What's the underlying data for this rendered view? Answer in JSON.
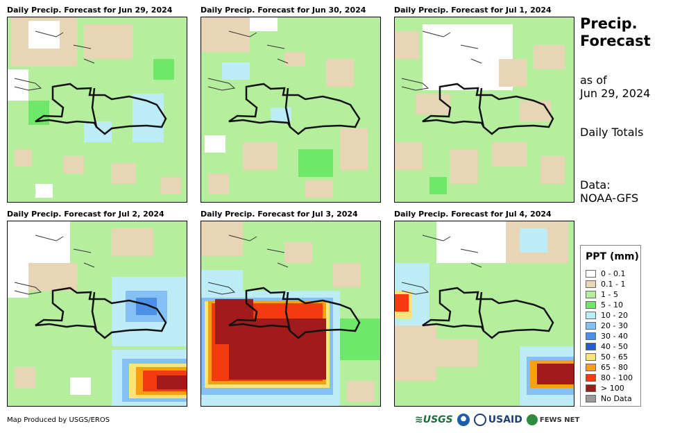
{
  "side": {
    "title_line1": "Precip.",
    "title_line2": "Forecast",
    "asof_line1": "as of",
    "asof_line2": "Jun 29, 2024",
    "totals": "Daily Totals",
    "data_line1": "Data:",
    "data_line2": "NOAA-GFS"
  },
  "panels": [
    {
      "title": "Daily Precip. Forecast for Jun 29, 2024"
    },
    {
      "title": "Daily Precip. Forecast for Jun 30, 2024"
    },
    {
      "title": "Daily Precip. Forecast for Jul 1, 2024"
    },
    {
      "title": "Daily Precip. Forecast for Jul 2, 2024"
    },
    {
      "title": "Daily Precip. Forecast for Jul 3, 2024"
    },
    {
      "title": "Daily Precip. Forecast for Jul 4, 2024"
    }
  ],
  "legend": {
    "title": "PPT (mm)",
    "items": [
      {
        "label": "0 - 0.1",
        "color": "#ffffff"
      },
      {
        "label": "0.1 - 1",
        "color": "#e8d5b5"
      },
      {
        "label": "1 - 5",
        "color": "#b5ef9e"
      },
      {
        "label": "5 - 10",
        "color": "#6fe86a"
      },
      {
        "label": "10 - 20",
        "color": "#bcecf5"
      },
      {
        "label": "20 - 30",
        "color": "#84c0f3"
      },
      {
        "label": "30 - 40",
        "color": "#4a8fe8"
      },
      {
        "label": "40 - 50",
        "color": "#1f5fd8"
      },
      {
        "label": "50 - 65",
        "color": "#fde37c"
      },
      {
        "label": "65 - 80",
        "color": "#f7a00f"
      },
      {
        "label": "80 - 100",
        "color": "#f23b0f"
      },
      {
        "label": "> 100",
        "color": "#a11b1b"
      },
      {
        "label": "No Data",
        "color": "#999999"
      }
    ]
  },
  "footer": {
    "credit": "Map Produced by USGS/EROS",
    "logo_usgs": "≋USGS",
    "logo_usaid": "USAID",
    "logo_fews": "FEWS NET"
  }
}
